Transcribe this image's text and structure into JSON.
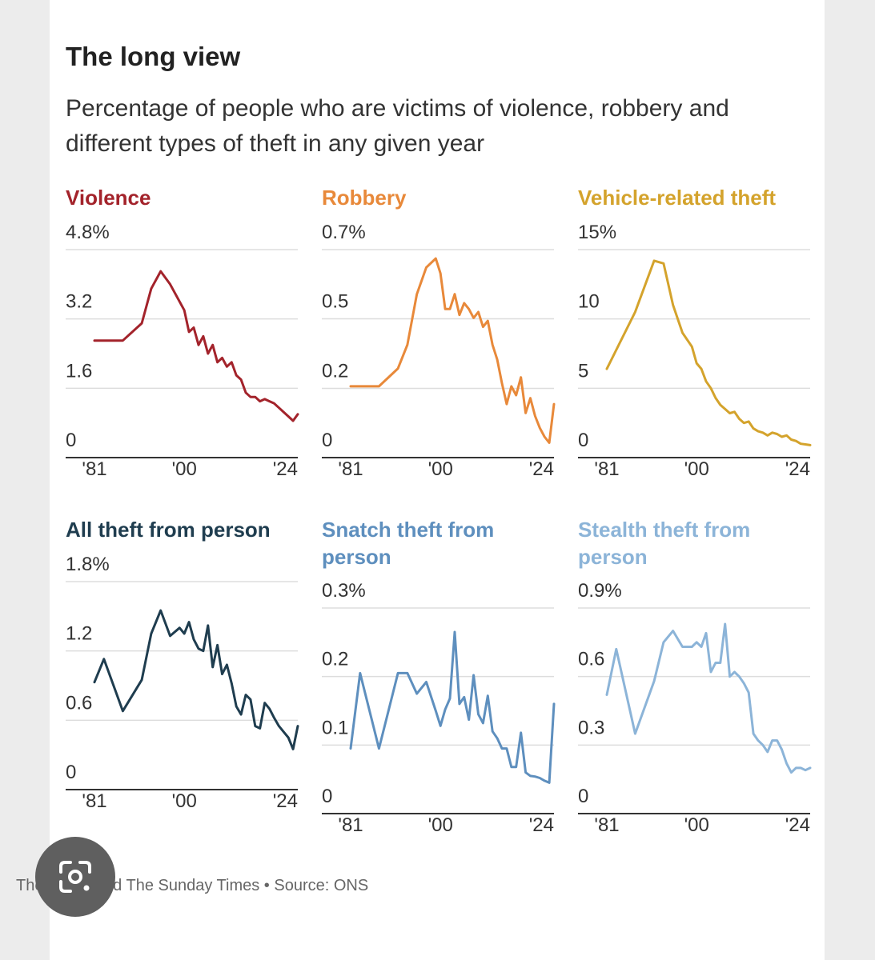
{
  "header": {
    "title": "The long view",
    "subtitle": "Percentage of people who are victims of violence, robbery and different types of theft in any given year"
  },
  "footer": {
    "credit": "The Times and The Sunday Times",
    "separator": "•",
    "source": "Source: ONS"
  },
  "lens": {
    "icon": "google-lens-icon"
  },
  "chart_data": [
    {
      "type": "line",
      "title_lines": [
        "Violence"
      ],
      "color": "#a3232b",
      "y_ticks": [
        "0",
        "1.6",
        "3.2",
        "4.8%"
      ],
      "y_tick_values": [
        0,
        1.6,
        3.2,
        4.8
      ],
      "ylim": [
        0,
        4.8
      ],
      "xlim": [
        1981,
        2024
      ],
      "x_ticks": [
        "'81",
        "'00",
        "'24"
      ],
      "x_tick_values": [
        1981,
        2000,
        2024
      ],
      "x": [
        1981,
        1987,
        1991,
        1993,
        1995,
        1997,
        2000,
        2001,
        2002,
        2003,
        2004,
        2005,
        2006,
        2007,
        2008,
        2009,
        2010,
        2011,
        2012,
        2013,
        2014,
        2015,
        2016,
        2017,
        2018,
        2019,
        2020,
        2021,
        2022,
        2023,
        2024
      ],
      "values": [
        2.7,
        2.7,
        3.1,
        3.9,
        4.3,
        4.0,
        3.4,
        2.9,
        3.0,
        2.6,
        2.8,
        2.4,
        2.6,
        2.2,
        2.3,
        2.1,
        2.2,
        1.9,
        1.8,
        1.5,
        1.4,
        1.4,
        1.3,
        1.35,
        1.3,
        1.25,
        1.15,
        1.05,
        0.95,
        0.85,
        1.0
      ]
    },
    {
      "type": "line",
      "title_lines": [
        "Robbery"
      ],
      "color": "#e8893a",
      "y_ticks": [
        "0",
        "0.2",
        "0.5",
        "0.7%"
      ],
      "y_tick_values": [
        0,
        0.233,
        0.467,
        0.7
      ],
      "ylim": [
        0,
        0.7
      ],
      "xlim": [
        1981,
        2024
      ],
      "x_ticks": [
        "'81",
        "'00",
        "'24"
      ],
      "x_tick_values": [
        1981,
        2000,
        2024
      ],
      "x": [
        1981,
        1987,
        1991,
        1993,
        1995,
        1997,
        1999,
        2000,
        2001,
        2002,
        2003,
        2004,
        2005,
        2006,
        2007,
        2008,
        2009,
        2010,
        2011,
        2012,
        2013,
        2014,
        2015,
        2016,
        2017,
        2018,
        2019,
        2020,
        2021,
        2022,
        2023,
        2024
      ],
      "values": [
        0.24,
        0.24,
        0.3,
        0.38,
        0.55,
        0.64,
        0.67,
        0.62,
        0.5,
        0.5,
        0.55,
        0.48,
        0.52,
        0.5,
        0.47,
        0.49,
        0.44,
        0.46,
        0.38,
        0.33,
        0.25,
        0.18,
        0.24,
        0.21,
        0.27,
        0.15,
        0.2,
        0.14,
        0.1,
        0.07,
        0.05,
        0.18
      ]
    },
    {
      "type": "line",
      "title_lines": [
        "Vehicle-related theft"
      ],
      "color": "#d4a32c",
      "y_ticks": [
        "0",
        "5",
        "10",
        "15%"
      ],
      "y_tick_values": [
        0,
        5,
        10,
        15
      ],
      "ylim": [
        0,
        15
      ],
      "xlim": [
        1981,
        2024
      ],
      "x_ticks": [
        "'81",
        "'00",
        "'24"
      ],
      "x_tick_values": [
        1981,
        2000,
        2024
      ],
      "x": [
        1981,
        1987,
        1991,
        1993,
        1995,
        1997,
        1999,
        2000,
        2001,
        2002,
        2003,
        2004,
        2005,
        2006,
        2007,
        2008,
        2009,
        2010,
        2011,
        2012,
        2013,
        2014,
        2015,
        2016,
        2017,
        2018,
        2019,
        2020,
        2021,
        2022,
        2023,
        2024
      ],
      "values": [
        6.4,
        10.5,
        14.2,
        14.0,
        11.0,
        9.0,
        8.0,
        6.8,
        6.4,
        5.5,
        5.0,
        4.3,
        3.8,
        3.5,
        3.2,
        3.3,
        2.8,
        2.5,
        2.6,
        2.1,
        1.9,
        1.8,
        1.6,
        1.8,
        1.7,
        1.5,
        1.6,
        1.3,
        1.2,
        1.0,
        0.95,
        0.9
      ]
    },
    {
      "type": "line",
      "title_lines": [
        "All theft from person"
      ],
      "color": "#1f3d4f",
      "y_ticks": [
        "0",
        "0.6",
        "1.2",
        "1.8%"
      ],
      "y_tick_values": [
        0,
        0.6,
        1.2,
        1.8
      ],
      "ylim": [
        0,
        1.8
      ],
      "xlim": [
        1981,
        2024
      ],
      "x_ticks": [
        "'81",
        "'00",
        "'24"
      ],
      "x_tick_values": [
        1981,
        2000,
        2024
      ],
      "x": [
        1981,
        1983,
        1987,
        1991,
        1993,
        1995,
        1997,
        1999,
        2000,
        2001,
        2002,
        2003,
        2004,
        2005,
        2006,
        2007,
        2008,
        2009,
        2010,
        2011,
        2012,
        2013,
        2014,
        2015,
        2016,
        2017,
        2018,
        2019,
        2020,
        2021,
        2022,
        2023,
        2024
      ],
      "values": [
        0.93,
        1.13,
        0.68,
        0.95,
        1.35,
        1.55,
        1.33,
        1.4,
        1.35,
        1.45,
        1.3,
        1.22,
        1.2,
        1.42,
        1.06,
        1.25,
        1.0,
        1.08,
        0.92,
        0.72,
        0.65,
        0.82,
        0.78,
        0.55,
        0.53,
        0.75,
        0.7,
        0.62,
        0.55,
        0.5,
        0.45,
        0.35,
        0.55
      ]
    },
    {
      "type": "line",
      "title_lines": [
        "Snatch theft from",
        "person"
      ],
      "color": "#5e8fbe",
      "y_ticks": [
        "0",
        "0.1",
        "0.2",
        "0.3%"
      ],
      "y_tick_values": [
        0,
        0.1,
        0.2,
        0.3
      ],
      "ylim": [
        0,
        0.3
      ],
      "xlim": [
        1981,
        2024
      ],
      "x_ticks": [
        "'81",
        "'00",
        "'24"
      ],
      "x_tick_values": [
        1981,
        2000,
        2024
      ],
      "x": [
        1981,
        1983,
        1987,
        1991,
        1993,
        1995,
        1997,
        1999,
        2000,
        2001,
        2002,
        2003,
        2004,
        2005,
        2006,
        2007,
        2008,
        2009,
        2010,
        2011,
        2012,
        2013,
        2014,
        2015,
        2016,
        2017,
        2018,
        2019,
        2020,
        2021,
        2022,
        2023,
        2024
      ],
      "values": [
        0.095,
        0.205,
        0.095,
        0.205,
        0.205,
        0.175,
        0.192,
        0.15,
        0.128,
        0.152,
        0.168,
        0.265,
        0.16,
        0.17,
        0.137,
        0.202,
        0.145,
        0.132,
        0.172,
        0.12,
        0.11,
        0.095,
        0.095,
        0.068,
        0.068,
        0.118,
        0.06,
        0.055,
        0.054,
        0.052,
        0.048,
        0.045,
        0.16
      ]
    },
    {
      "type": "line",
      "title_lines": [
        "Stealth theft from",
        "person"
      ],
      "color": "#8cb4d8",
      "y_ticks": [
        "0",
        "0.3",
        "0.6",
        "0.9%"
      ],
      "y_tick_values": [
        0,
        0.3,
        0.6,
        0.9
      ],
      "ylim": [
        0,
        0.9
      ],
      "xlim": [
        1981,
        2024
      ],
      "x_ticks": [
        "'81",
        "'00",
        "'24"
      ],
      "x_tick_values": [
        1981,
        2000,
        2024
      ],
      "x": [
        1981,
        1983,
        1987,
        1991,
        1993,
        1995,
        1997,
        1999,
        2000,
        2001,
        2002,
        2003,
        2004,
        2005,
        2006,
        2007,
        2008,
        2009,
        2010,
        2011,
        2012,
        2013,
        2014,
        2015,
        2016,
        2017,
        2018,
        2019,
        2020,
        2021,
        2022,
        2023,
        2024
      ],
      "values": [
        0.52,
        0.72,
        0.35,
        0.58,
        0.75,
        0.8,
        0.73,
        0.73,
        0.75,
        0.73,
        0.79,
        0.62,
        0.66,
        0.66,
        0.83,
        0.6,
        0.62,
        0.6,
        0.57,
        0.53,
        0.35,
        0.32,
        0.3,
        0.27,
        0.32,
        0.32,
        0.28,
        0.22,
        0.18,
        0.2,
        0.2,
        0.19,
        0.2
      ]
    }
  ]
}
